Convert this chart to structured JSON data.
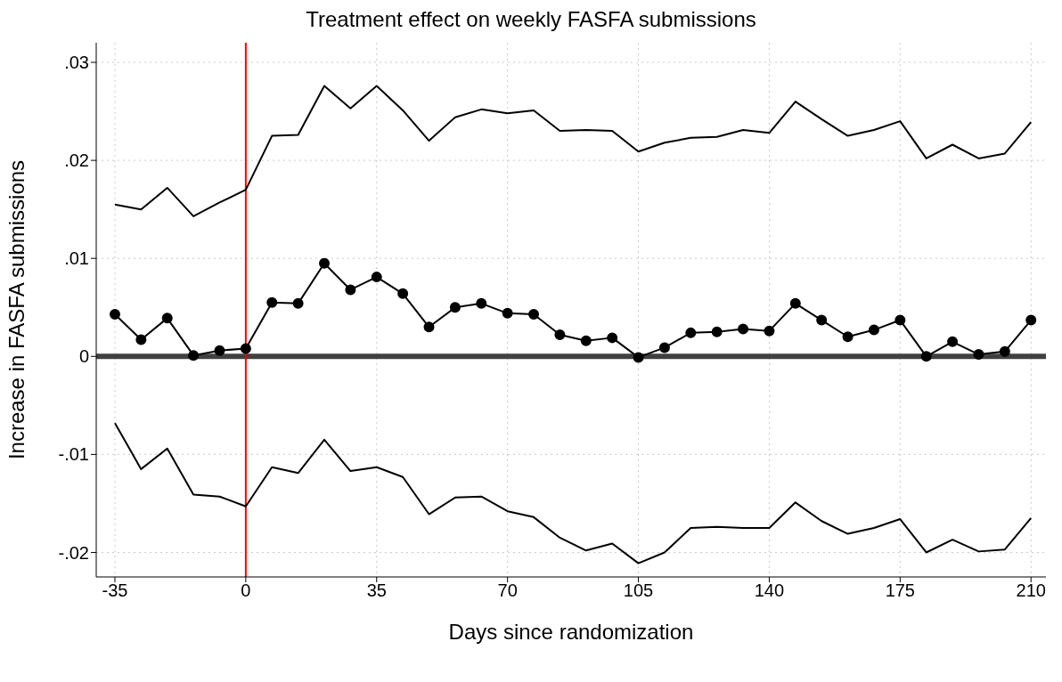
{
  "chart_data": {
    "type": "line",
    "title": "Treatment effect on weekly FASFA submissions",
    "xlabel": "Days since randomization",
    "ylabel": "Increase in FASFA submissions",
    "x": [
      -35,
      -28,
      -21,
      -14,
      -7,
      0,
      7,
      14,
      21,
      28,
      35,
      42,
      49,
      56,
      63,
      70,
      77,
      84,
      91,
      98,
      105,
      112,
      119,
      126,
      133,
      140,
      147,
      154,
      161,
      168,
      175,
      182,
      189,
      196,
      203,
      210
    ],
    "series": [
      {
        "color": "#000000",
        "marker": "none",
        "values": [
          0.0155,
          0.015,
          0.0172,
          0.0143,
          0.0157,
          0.017,
          0.0225,
          0.0226,
          0.0276,
          0.0253,
          0.0276,
          0.0251,
          0.022,
          0.0244,
          0.0252,
          0.0248,
          0.0251,
          0.023,
          0.0231,
          0.023,
          0.0209,
          0.0218,
          0.0223,
          0.0224,
          0.0231,
          0.0228,
          0.026,
          0.0242,
          0.0225,
          0.0231,
          0.024,
          0.0202,
          0.0216,
          0.0202,
          0.0207,
          0.0239
        ]
      },
      {
        "color": "#000000",
        "marker": "circle",
        "values": [
          0.0043,
          0.0017,
          0.0039,
          0.0001,
          0.0006,
          0.0008,
          0.0055,
          0.0054,
          0.0095,
          0.0068,
          0.0081,
          0.0064,
          0.003,
          0.005,
          0.0054,
          0.0044,
          0.0043,
          0.0022,
          0.0016,
          0.0019,
          -0.0001,
          0.0009,
          0.0024,
          0.0025,
          0.0028,
          0.0026,
          0.0054,
          0.0037,
          0.002,
          0.0027,
          0.0037,
          0,
          0.0015,
          0.0002,
          0.0005,
          0.0037
        ]
      },
      {
        "color": "#000000",
        "marker": "none",
        "values": [
          -0.0068,
          -0.0115,
          -0.0094,
          -0.0141,
          -0.0143,
          -0.0153,
          -0.0113,
          -0.0119,
          -0.0085,
          -0.0117,
          -0.0113,
          -0.0123,
          -0.0161,
          -0.0144,
          -0.0143,
          -0.0158,
          -0.0164,
          -0.0185,
          -0.0198,
          -0.0191,
          -0.0211,
          -0.02,
          -0.0175,
          -0.0174,
          -0.0175,
          -0.0175,
          -0.0149,
          -0.0168,
          -0.0181,
          -0.0175,
          -0.0166,
          -0.02,
          -0.0187,
          -0.0199,
          -0.0197,
          -0.0165
        ]
      }
    ],
    "xlim": [
      -40,
      214
    ],
    "xticks": [
      -35,
      0,
      35,
      70,
      105,
      140,
      175,
      210
    ],
    "ylim": [
      -0.0225,
      0.032
    ],
    "yticks": [
      {
        "value": -0.02,
        "label": "-.02"
      },
      {
        "value": -0.01,
        "label": "-.01"
      },
      {
        "value": 0,
        "label": "0"
      },
      {
        "value": 0.01,
        "label": ".01"
      },
      {
        "value": 0.02,
        "label": ".02"
      },
      {
        "value": 0.03,
        "label": ".03"
      }
    ],
    "ref_lines": [
      {
        "axis": "y",
        "value": 0,
        "color": "#404040"
      },
      {
        "axis": "x",
        "value": 0,
        "color": "#ff0000"
      }
    ],
    "grid": true,
    "line_style": "solid"
  }
}
